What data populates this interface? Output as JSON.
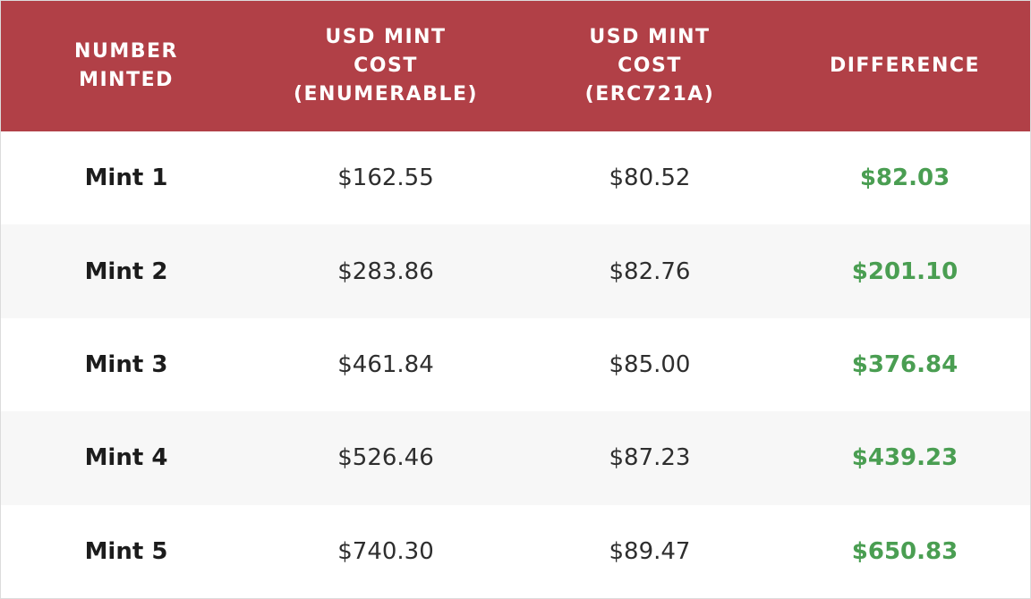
{
  "table": {
    "headers": [
      [
        "NUMBER",
        "MINTED"
      ],
      [
        "USD MINT",
        "COST",
        "(ENUMERABLE)"
      ],
      [
        "USD MINT",
        "COST",
        "(ERC721A)"
      ],
      [
        "DIFFERENCE"
      ]
    ],
    "rows": [
      {
        "label": "Mint 1",
        "enumerable": "$162.55",
        "erc721a": "$80.52",
        "difference": "$82.03"
      },
      {
        "label": "Mint 2",
        "enumerable": "$283.86",
        "erc721a": "$82.76",
        "difference": "$201.10"
      },
      {
        "label": "Mint 3",
        "enumerable": "$461.84",
        "erc721a": "$85.00",
        "difference": "$376.84"
      },
      {
        "label": "Mint 4",
        "enumerable": "$526.46",
        "erc721a": "$87.23",
        "difference": "$439.23"
      },
      {
        "label": "Mint 5",
        "enumerable": "$740.30",
        "erc721a": "$89.47",
        "difference": "$650.83"
      }
    ]
  },
  "colors": {
    "header_background": "#b14047",
    "header_text": "#ffffff",
    "difference_text": "#4a9e52",
    "alt_row_background": "#f7f7f7"
  }
}
